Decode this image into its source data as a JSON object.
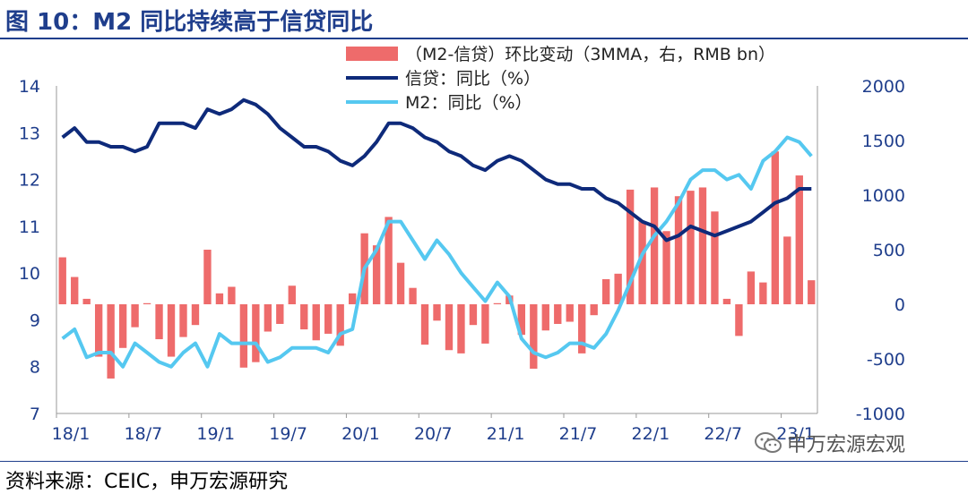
{
  "title": "图 10：M2 同比持续高于信贷同比",
  "source": "资料来源：CEIC，申万宏源研究",
  "watermark": "申万宏源宏观",
  "colors": {
    "bar": "#ee6b6b",
    "credit": "#0e2a7a",
    "m2": "#55c8f0",
    "title": "#1f3e8c"
  },
  "chart_data": {
    "type": "bar+line",
    "x_ticks": [
      "18/1",
      "18/7",
      "19/1",
      "19/7",
      "20/1",
      "20/7",
      "21/1",
      "21/7",
      "22/1",
      "22/7",
      "23/1"
    ],
    "x_start": "2018-01",
    "x_end": "2023-04",
    "y_left": {
      "ticks": [
        7,
        8,
        9,
        10,
        11,
        12,
        13,
        14
      ],
      "lim": [
        7,
        14
      ]
    },
    "y_right": {
      "ticks": [
        -1000,
        -500,
        0,
        500,
        1000,
        1500,
        2000
      ],
      "lim": [
        -1000,
        2000
      ]
    },
    "legend_position": "top-center",
    "series": [
      {
        "name": "（M2-信贷）环比变动（3MMA，右，RMB bn）",
        "type": "bar",
        "axis": "right",
        "values": [
          430,
          250,
          50,
          -480,
          -680,
          -400,
          -210,
          10,
          -320,
          -480,
          -300,
          -190,
          500,
          100,
          160,
          -580,
          -530,
          -250,
          -180,
          170,
          -230,
          -330,
          -270,
          -380,
          100,
          650,
          540,
          800,
          380,
          150,
          -370,
          -150,
          -420,
          -450,
          -190,
          -360,
          10,
          80,
          -280,
          -590,
          -240,
          -180,
          -160,
          -450,
          -100,
          230,
          280,
          1050,
          760,
          1070,
          670,
          990,
          1040,
          1070,
          850,
          50,
          -290,
          300,
          200,
          1400,
          620,
          1180,
          220
        ]
      },
      {
        "name": "信贷：同比（%）",
        "type": "line",
        "axis": "left",
        "values": [
          12.9,
          13.1,
          12.8,
          12.8,
          12.7,
          12.7,
          12.6,
          12.7,
          13.2,
          13.2,
          13.2,
          13.1,
          13.5,
          13.4,
          13.5,
          13.7,
          13.6,
          13.4,
          13.1,
          12.9,
          12.7,
          12.7,
          12.6,
          12.4,
          12.3,
          12.5,
          12.8,
          13.2,
          13.2,
          13.1,
          12.9,
          12.8,
          12.6,
          12.5,
          12.3,
          12.2,
          12.4,
          12.5,
          12.4,
          12.2,
          12.0,
          11.9,
          11.9,
          11.8,
          11.8,
          11.6,
          11.5,
          11.3,
          11.1,
          11.0,
          10.7,
          10.8,
          11.0,
          10.9,
          10.8,
          10.9,
          11.0,
          11.1,
          11.3,
          11.5,
          11.6,
          11.8,
          11.8
        ]
      },
      {
        "name": "M2：同比（%）",
        "type": "line",
        "axis": "left",
        "values": [
          8.6,
          8.8,
          8.2,
          8.3,
          8.3,
          8.0,
          8.5,
          8.3,
          8.1,
          8.0,
          8.3,
          8.5,
          8.0,
          8.7,
          8.5,
          8.5,
          8.5,
          8.1,
          8.2,
          8.4,
          8.4,
          8.4,
          8.3,
          8.7,
          8.8,
          10.1,
          10.5,
          11.1,
          11.1,
          10.7,
          10.3,
          10.7,
          10.4,
          10.0,
          9.7,
          9.4,
          9.8,
          9.5,
          8.6,
          8.3,
          8.2,
          8.3,
          8.5,
          8.5,
          8.4,
          8.7,
          9.2,
          9.8,
          10.4,
          10.8,
          11.1,
          11.5,
          12.0,
          12.2,
          12.2,
          12.0,
          12.1,
          11.8,
          12.4,
          12.6,
          12.9,
          12.8,
          12.5
        ]
      }
    ]
  }
}
